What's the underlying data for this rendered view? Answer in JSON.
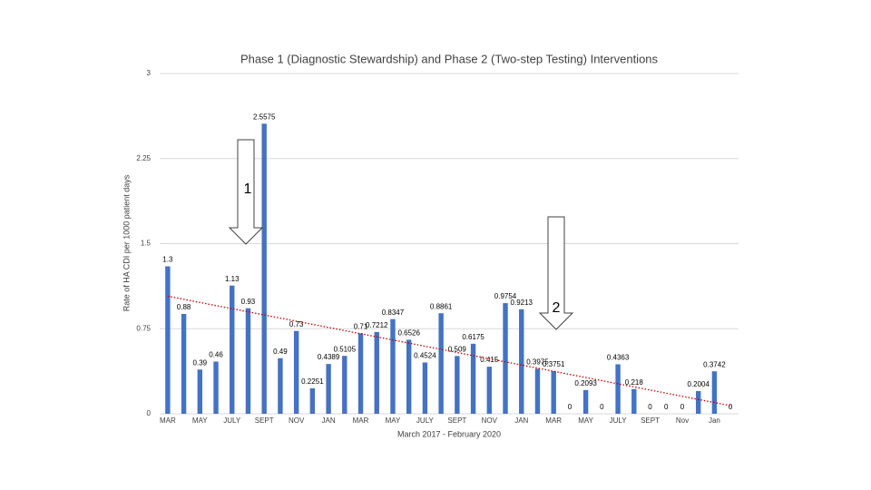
{
  "chart_data": {
    "type": "bar",
    "title": "Phase 1 (Diagnostic Stewardship) and Phase 2 (Two-step Testing) Interventions",
    "x_label": "March 2017 - February 2020",
    "y_label": "Rate of HA CDI per 1000 patient days",
    "categories": [
      "MAR",
      null,
      "MAY",
      null,
      "JULY",
      null,
      "SEPT",
      null,
      "NOV",
      null,
      "JAN",
      null,
      "MAR",
      null,
      "MAY",
      null,
      "JULY",
      null,
      "SEPT",
      null,
      "NOV",
      null,
      "JAN",
      null,
      "MAR",
      null,
      "MAY",
      null,
      "JULY",
      null,
      "SEPT",
      null,
      "Nov",
      null,
      "Jan",
      null
    ],
    "values": [
      1.3,
      0.88,
      0.39,
      0.46,
      1.13,
      0.93,
      2.5575,
      0.49,
      0.73,
      0.2251,
      0.4389,
      0.5105,
      0.71,
      0.7212,
      0.8347,
      0.6526,
      0.4524,
      0.8861,
      0.509,
      0.6175,
      0.415,
      0.9754,
      0.9213,
      0.3975,
      0.3751,
      0,
      0.2093,
      0,
      0.4363,
      0.218,
      0,
      0,
      0,
      0.2004,
      0.3742,
      0
    ],
    "color": "#4472c4",
    "trendline": {
      "type": "linear",
      "color": "#c00000"
    },
    "annotations": [
      "1",
      "2"
    ],
    "ylim": [
      0,
      3
    ],
    "yticks": [
      0,
      0.75,
      1.5,
      2.25,
      3
    ],
    "grid": true
  }
}
